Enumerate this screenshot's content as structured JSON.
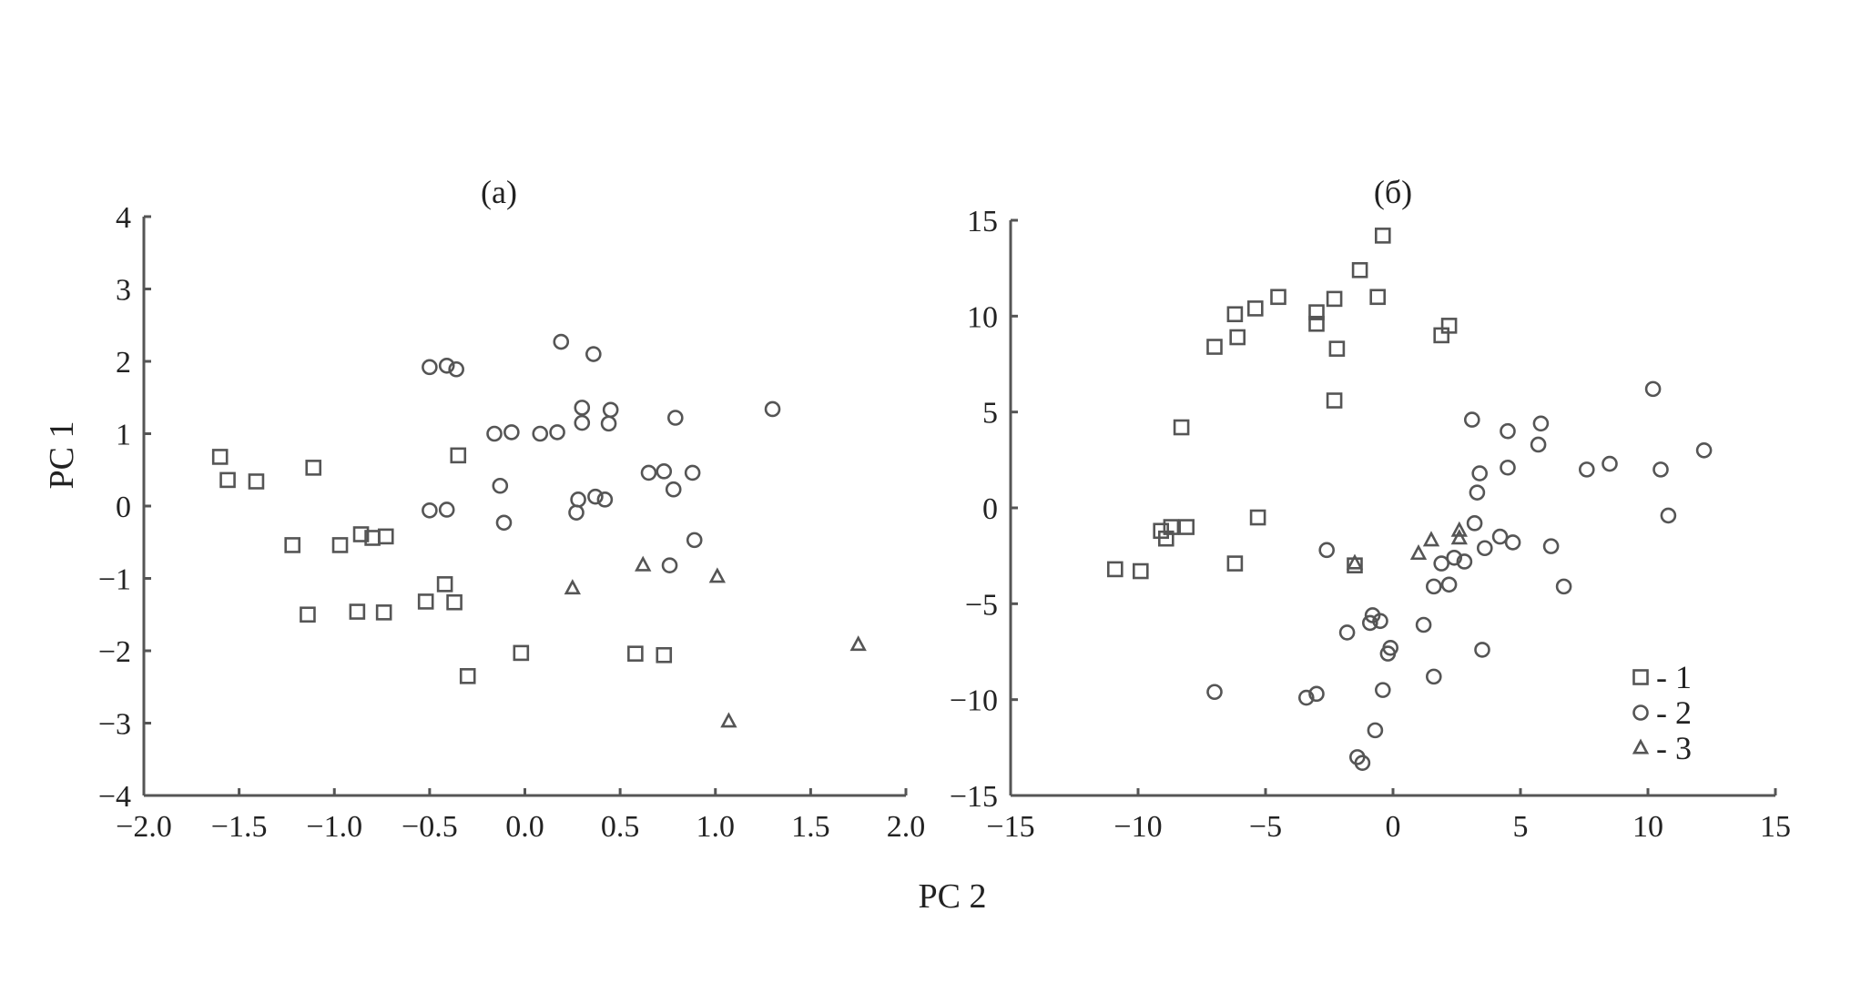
{
  "figure": {
    "shared_xlabel": "PC 2",
    "shared_ylabel": "PC 1"
  },
  "chart_data": [
    {
      "type": "scatter",
      "title": "(a)",
      "xlabel": "PC 2",
      "ylabel": "PC 1",
      "xlim": [
        -2.0,
        2.0
      ],
      "ylim": [
        -4,
        4
      ],
      "xticks": [
        "−2.0",
        "−1.5",
        "−1.0",
        "−0.5",
        "0.0",
        "0.5",
        "1.0",
        "1.5",
        "2.0"
      ],
      "xtick_values": [
        -2.0,
        -1.5,
        -1.0,
        -0.5,
        0.0,
        0.5,
        1.0,
        1.5,
        2.0
      ],
      "yticks": [
        "4",
        "3",
        "2",
        "1",
        "0",
        "−1",
        "−2",
        "−3",
        "−4"
      ],
      "ytick_values": [
        4,
        3,
        2,
        1,
        0,
        -1,
        -2,
        -3,
        -4
      ],
      "grid": false,
      "series": [
        {
          "marker": "square",
          "points": [
            [
              -1.6,
              0.68
            ],
            [
              -1.56,
              0.36
            ],
            [
              -1.41,
              0.34
            ],
            [
              -1.11,
              0.53
            ],
            [
              -1.22,
              -0.54
            ],
            [
              -0.97,
              -0.54
            ],
            [
              -0.86,
              -0.39
            ],
            [
              -0.8,
              -0.44
            ],
            [
              -0.73,
              -0.42
            ],
            [
              -1.14,
              -1.5
            ],
            [
              -0.88,
              -1.46
            ],
            [
              -0.74,
              -1.47
            ],
            [
              -0.52,
              -1.32
            ],
            [
              -0.42,
              -1.08
            ],
            [
              -0.37,
              -1.33
            ],
            [
              -0.35,
              0.7
            ],
            [
              -0.3,
              -2.35
            ],
            [
              -0.02,
              -2.03
            ],
            [
              0.58,
              -2.04
            ],
            [
              0.73,
              -2.06
            ]
          ]
        },
        {
          "marker": "circle",
          "points": [
            [
              -0.5,
              1.92
            ],
            [
              -0.41,
              1.94
            ],
            [
              -0.36,
              1.89
            ],
            [
              0.19,
              2.27
            ],
            [
              0.36,
              2.1
            ],
            [
              -0.16,
              1.0
            ],
            [
              -0.07,
              1.02
            ],
            [
              0.08,
              1.0
            ],
            [
              0.17,
              1.02
            ],
            [
              0.3,
              1.36
            ],
            [
              0.3,
              1.15
            ],
            [
              0.45,
              1.33
            ],
            [
              0.44,
              1.14
            ],
            [
              0.79,
              1.22
            ],
            [
              1.3,
              1.34
            ],
            [
              0.65,
              0.46
            ],
            [
              0.73,
              0.48
            ],
            [
              0.88,
              0.46
            ],
            [
              0.78,
              0.23
            ],
            [
              -0.13,
              0.28
            ],
            [
              0.28,
              0.09
            ],
            [
              0.37,
              0.13
            ],
            [
              0.42,
              0.09
            ],
            [
              0.27,
              -0.09
            ],
            [
              -0.5,
              -0.06
            ],
            [
              -0.41,
              -0.05
            ],
            [
              -0.11,
              -0.23
            ],
            [
              0.89,
              -0.47
            ],
            [
              0.76,
              -0.82
            ]
          ]
        },
        {
          "marker": "triangle",
          "points": [
            [
              0.62,
              -0.82
            ],
            [
              1.01,
              -0.98
            ],
            [
              0.25,
              -1.14
            ],
            [
              1.75,
              -1.92
            ],
            [
              1.07,
              -2.98
            ]
          ]
        }
      ]
    },
    {
      "type": "scatter",
      "title": "(б)",
      "xlabel": "PC 2",
      "ylabel": "PC 1",
      "xlim": [
        -15,
        15
      ],
      "ylim": [
        -15,
        15
      ],
      "xticks": [
        "−15",
        "−10",
        "−5",
        "0",
        "5",
        "10",
        "15"
      ],
      "xtick_values": [
        -15,
        -10,
        -5,
        0,
        5,
        10,
        15
      ],
      "yticks": [
        "15",
        "10",
        "5",
        "0",
        "−5",
        "−10",
        "−15"
      ],
      "ytick_values": [
        15,
        10,
        5,
        0,
        -5,
        -10,
        -15
      ],
      "grid": false,
      "legend": {
        "placement": "bottom-right",
        "entries": [
          {
            "marker": "square",
            "label": "- 1"
          },
          {
            "marker": "circle",
            "label": "- 2"
          },
          {
            "marker": "triangle",
            "label": "- 3"
          }
        ]
      },
      "series": [
        {
          "marker": "square",
          "points": [
            [
              -0.4,
              14.2
            ],
            [
              -1.3,
              12.4
            ],
            [
              -4.5,
              11.0
            ],
            [
              -2.3,
              10.9
            ],
            [
              -0.6,
              11.0
            ],
            [
              -5.4,
              10.4
            ],
            [
              -6.2,
              10.1
            ],
            [
              -3.0,
              9.6
            ],
            [
              -3.0,
              10.2
            ],
            [
              2.2,
              9.5
            ],
            [
              1.9,
              9.0
            ],
            [
              -6.1,
              8.9
            ],
            [
              -7.0,
              8.4
            ],
            [
              -2.2,
              8.3
            ],
            [
              -2.3,
              5.6
            ],
            [
              -8.3,
              4.2
            ],
            [
              -8.7,
              -1.0
            ],
            [
              -9.1,
              -1.2
            ],
            [
              -8.9,
              -1.6
            ],
            [
              -8.1,
              -1.0
            ],
            [
              -5.3,
              -0.5
            ],
            [
              -6.2,
              -2.9
            ],
            [
              -10.9,
              -3.2
            ],
            [
              -9.9,
              -3.3
            ],
            [
              -1.5,
              -3.0
            ]
          ]
        },
        {
          "marker": "circle",
          "points": [
            [
              10.2,
              6.2
            ],
            [
              3.1,
              4.6
            ],
            [
              4.5,
              4.0
            ],
            [
              5.8,
              4.4
            ],
            [
              5.7,
              3.3
            ],
            [
              12.2,
              3.0
            ],
            [
              8.5,
              2.3
            ],
            [
              10.5,
              2.0
            ],
            [
              7.6,
              2.0
            ],
            [
              4.5,
              2.1
            ],
            [
              3.4,
              1.8
            ],
            [
              3.3,
              0.8
            ],
            [
              10.8,
              -0.4
            ],
            [
              -2.6,
              -2.2
            ],
            [
              3.2,
              -0.8
            ],
            [
              4.2,
              -1.5
            ],
            [
              4.7,
              -1.8
            ],
            [
              3.6,
              -2.1
            ],
            [
              6.2,
              -2.0
            ],
            [
              1.9,
              -2.9
            ],
            [
              2.4,
              -2.6
            ],
            [
              2.8,
              -2.8
            ],
            [
              1.6,
              -4.1
            ],
            [
              2.2,
              -4.0
            ],
            [
              6.7,
              -4.1
            ],
            [
              -0.8,
              -5.6
            ],
            [
              -0.5,
              -5.9
            ],
            [
              -0.9,
              -6.0
            ],
            [
              -1.8,
              -6.5
            ],
            [
              1.2,
              -6.1
            ],
            [
              -0.1,
              -7.3
            ],
            [
              -0.2,
              -7.6
            ],
            [
              3.5,
              -7.4
            ],
            [
              1.6,
              -8.8
            ],
            [
              -7.0,
              -9.6
            ],
            [
              -3.4,
              -9.9
            ],
            [
              -3.0,
              -9.7
            ],
            [
              -0.4,
              -9.5
            ],
            [
              -0.7,
              -11.6
            ],
            [
              -1.4,
              -13.0
            ],
            [
              -1.2,
              -13.3
            ]
          ]
        },
        {
          "marker": "triangle",
          "points": [
            [
              1.5,
              -1.7
            ],
            [
              2.6,
              -1.2
            ],
            [
              2.6,
              -1.6
            ],
            [
              1.0,
              -2.4
            ],
            [
              -1.5,
              -2.9
            ]
          ]
        }
      ]
    }
  ]
}
